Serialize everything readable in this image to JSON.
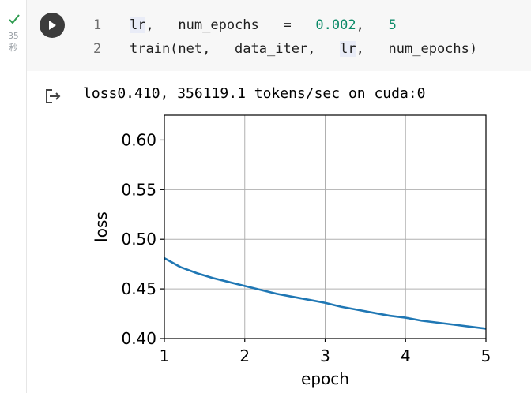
{
  "status": {
    "exec_time": "35",
    "exec_unit": "秒"
  },
  "code": {
    "lines": [
      {
        "num": "1",
        "tokens": [
          {
            "t": "lr",
            "c": "hl"
          },
          {
            "t": ",   num_epochs   =   ",
            "c": ""
          },
          {
            "t": "0.002",
            "c": "num"
          },
          {
            "t": ",   ",
            "c": ""
          },
          {
            "t": "5",
            "c": "num"
          }
        ]
      },
      {
        "num": "2",
        "tokens": [
          {
            "t": "train(net,   data_iter,   ",
            "c": ""
          },
          {
            "t": "lr",
            "c": "hl"
          },
          {
            "t": ",   num_epochs)",
            "c": ""
          }
        ]
      }
    ]
  },
  "output": {
    "text": "loss0.410, 356119.1 tokens/sec on cuda:0"
  },
  "chart_data": {
    "type": "line",
    "xlabel": "epoch",
    "ylabel": "loss",
    "xlim": [
      1,
      5
    ],
    "ylim": [
      0.4,
      0.625
    ],
    "xticks": [
      1,
      2,
      3,
      4,
      5
    ],
    "yticks": [
      0.4,
      0.45,
      0.5,
      0.55,
      0.6
    ],
    "grid": true,
    "series": [
      {
        "color": "#1f77b4",
        "x": [
          1,
          1.2,
          1.4,
          1.6,
          1.8,
          2,
          2.2,
          2.4,
          2.6,
          2.8,
          3,
          3.2,
          3.4,
          3.6,
          3.8,
          4,
          4.2,
          4.4,
          4.6,
          4.8,
          5
        ],
        "y": [
          0.481,
          0.472,
          0.466,
          0.461,
          0.457,
          0.453,
          0.449,
          0.445,
          0.442,
          0.439,
          0.436,
          0.432,
          0.429,
          0.426,
          0.423,
          0.421,
          0.418,
          0.416,
          0.414,
          0.412,
          0.41
        ]
      }
    ]
  }
}
